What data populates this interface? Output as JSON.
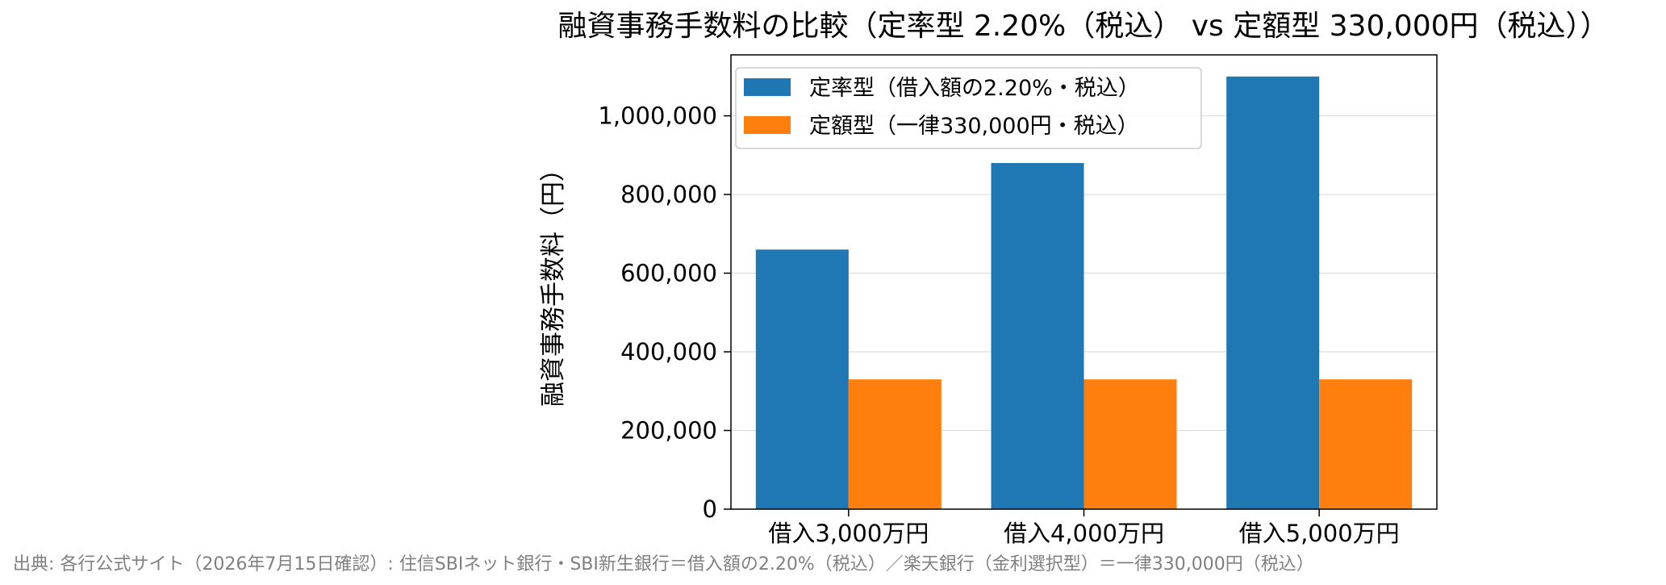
{
  "chart_data": {
    "type": "bar",
    "title": "融資事務手数料の比較（定率型 2.20%（税込） vs 定額型 330,000円（税込））",
    "xlabel": "",
    "ylabel": "融資事務手数料（円）",
    "categories": [
      "借入3,000万円",
      "借入4,000万円",
      "借入5,000万円"
    ],
    "series": [
      {
        "name": "定率型（借入額の2.20%・税込）",
        "color": "#1f77b4",
        "values": [
          660000,
          880000,
          1100000
        ]
      },
      {
        "name": "定額型（一律330,000円・税込）",
        "color": "#ff7f0e",
        "values": [
          330000,
          330000,
          330000
        ]
      }
    ],
    "ylim": [
      0,
      1155000
    ],
    "yticks": [
      0,
      200000,
      400000,
      600000,
      800000,
      1000000
    ],
    "ytick_labels": [
      "0",
      "200,000",
      "400,000",
      "600,000",
      "800,000",
      "1,000,000"
    ],
    "grid": "y",
    "legend_position": "upper-left",
    "source": "出典: 各行公式サイト（2026年7月15日確認）: 住信SBIネット銀行・SBI新生銀行＝借入額の2.20%（税込）／楽天銀行（金利選択型）＝一律330,000円（税込）"
  }
}
